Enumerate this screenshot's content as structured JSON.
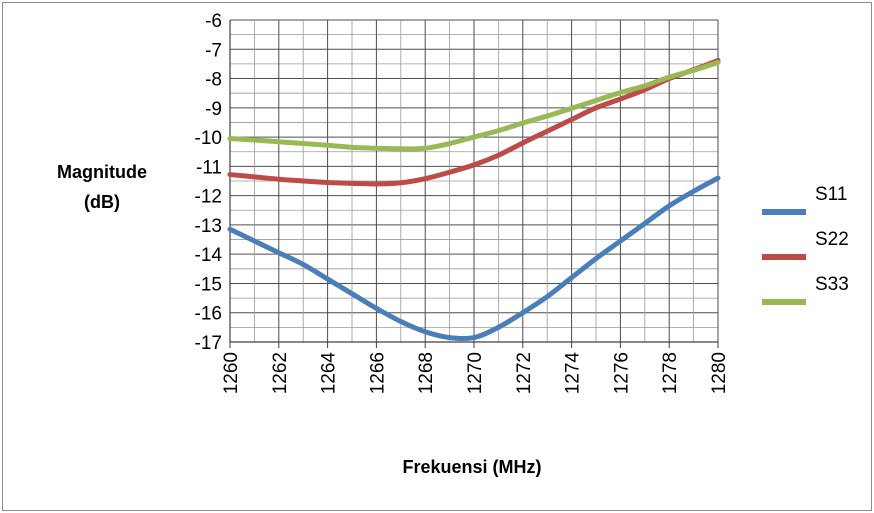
{
  "chart_data": {
    "type": "line",
    "title": "",
    "ylabel_lines": [
      "Magnitude",
      "(dB)"
    ],
    "xlabel": "Frekuensi (MHz)",
    "x": [
      1260,
      1261,
      1262,
      1263,
      1264,
      1265,
      1266,
      1267,
      1268,
      1269,
      1270,
      1271,
      1272,
      1273,
      1274,
      1275,
      1276,
      1277,
      1278,
      1279,
      1280
    ],
    "xticks": [
      1260,
      1262,
      1264,
      1266,
      1268,
      1270,
      1272,
      1274,
      1276,
      1278,
      1280
    ],
    "yticks": [
      -6,
      -7,
      -8,
      -9,
      -10,
      -11,
      -12,
      -13,
      -14,
      -15,
      -16,
      -17
    ],
    "xlim": [
      1260,
      1280
    ],
    "ylim": [
      -17,
      -6
    ],
    "grid": true,
    "legend_position": "right",
    "series": [
      {
        "name": "S11",
        "color": "#4a7ebb",
        "values": [
          -13.15,
          -13.55,
          -13.95,
          -14.35,
          -14.85,
          -15.35,
          -15.85,
          -16.3,
          -16.65,
          -16.85,
          -16.85,
          -16.5,
          -16.0,
          -15.45,
          -14.8,
          -14.15,
          -13.55,
          -12.95,
          -12.35,
          -11.85,
          -11.4
        ]
      },
      {
        "name": "S22",
        "color": "#be4b48",
        "values": [
          -11.28,
          -11.36,
          -11.44,
          -11.5,
          -11.55,
          -11.58,
          -11.6,
          -11.56,
          -11.42,
          -11.2,
          -10.95,
          -10.62,
          -10.2,
          -9.8,
          -9.4,
          -9.0,
          -8.7,
          -8.38,
          -8.0,
          -7.7,
          -7.38
        ]
      },
      {
        "name": "S33",
        "color": "#98b954",
        "values": [
          -10.05,
          -10.1,
          -10.16,
          -10.22,
          -10.28,
          -10.35,
          -10.38,
          -10.4,
          -10.38,
          -10.22,
          -10.0,
          -9.78,
          -9.52,
          -9.28,
          -9.02,
          -8.75,
          -8.48,
          -8.25,
          -7.95,
          -7.72,
          -7.45
        ]
      }
    ]
  }
}
